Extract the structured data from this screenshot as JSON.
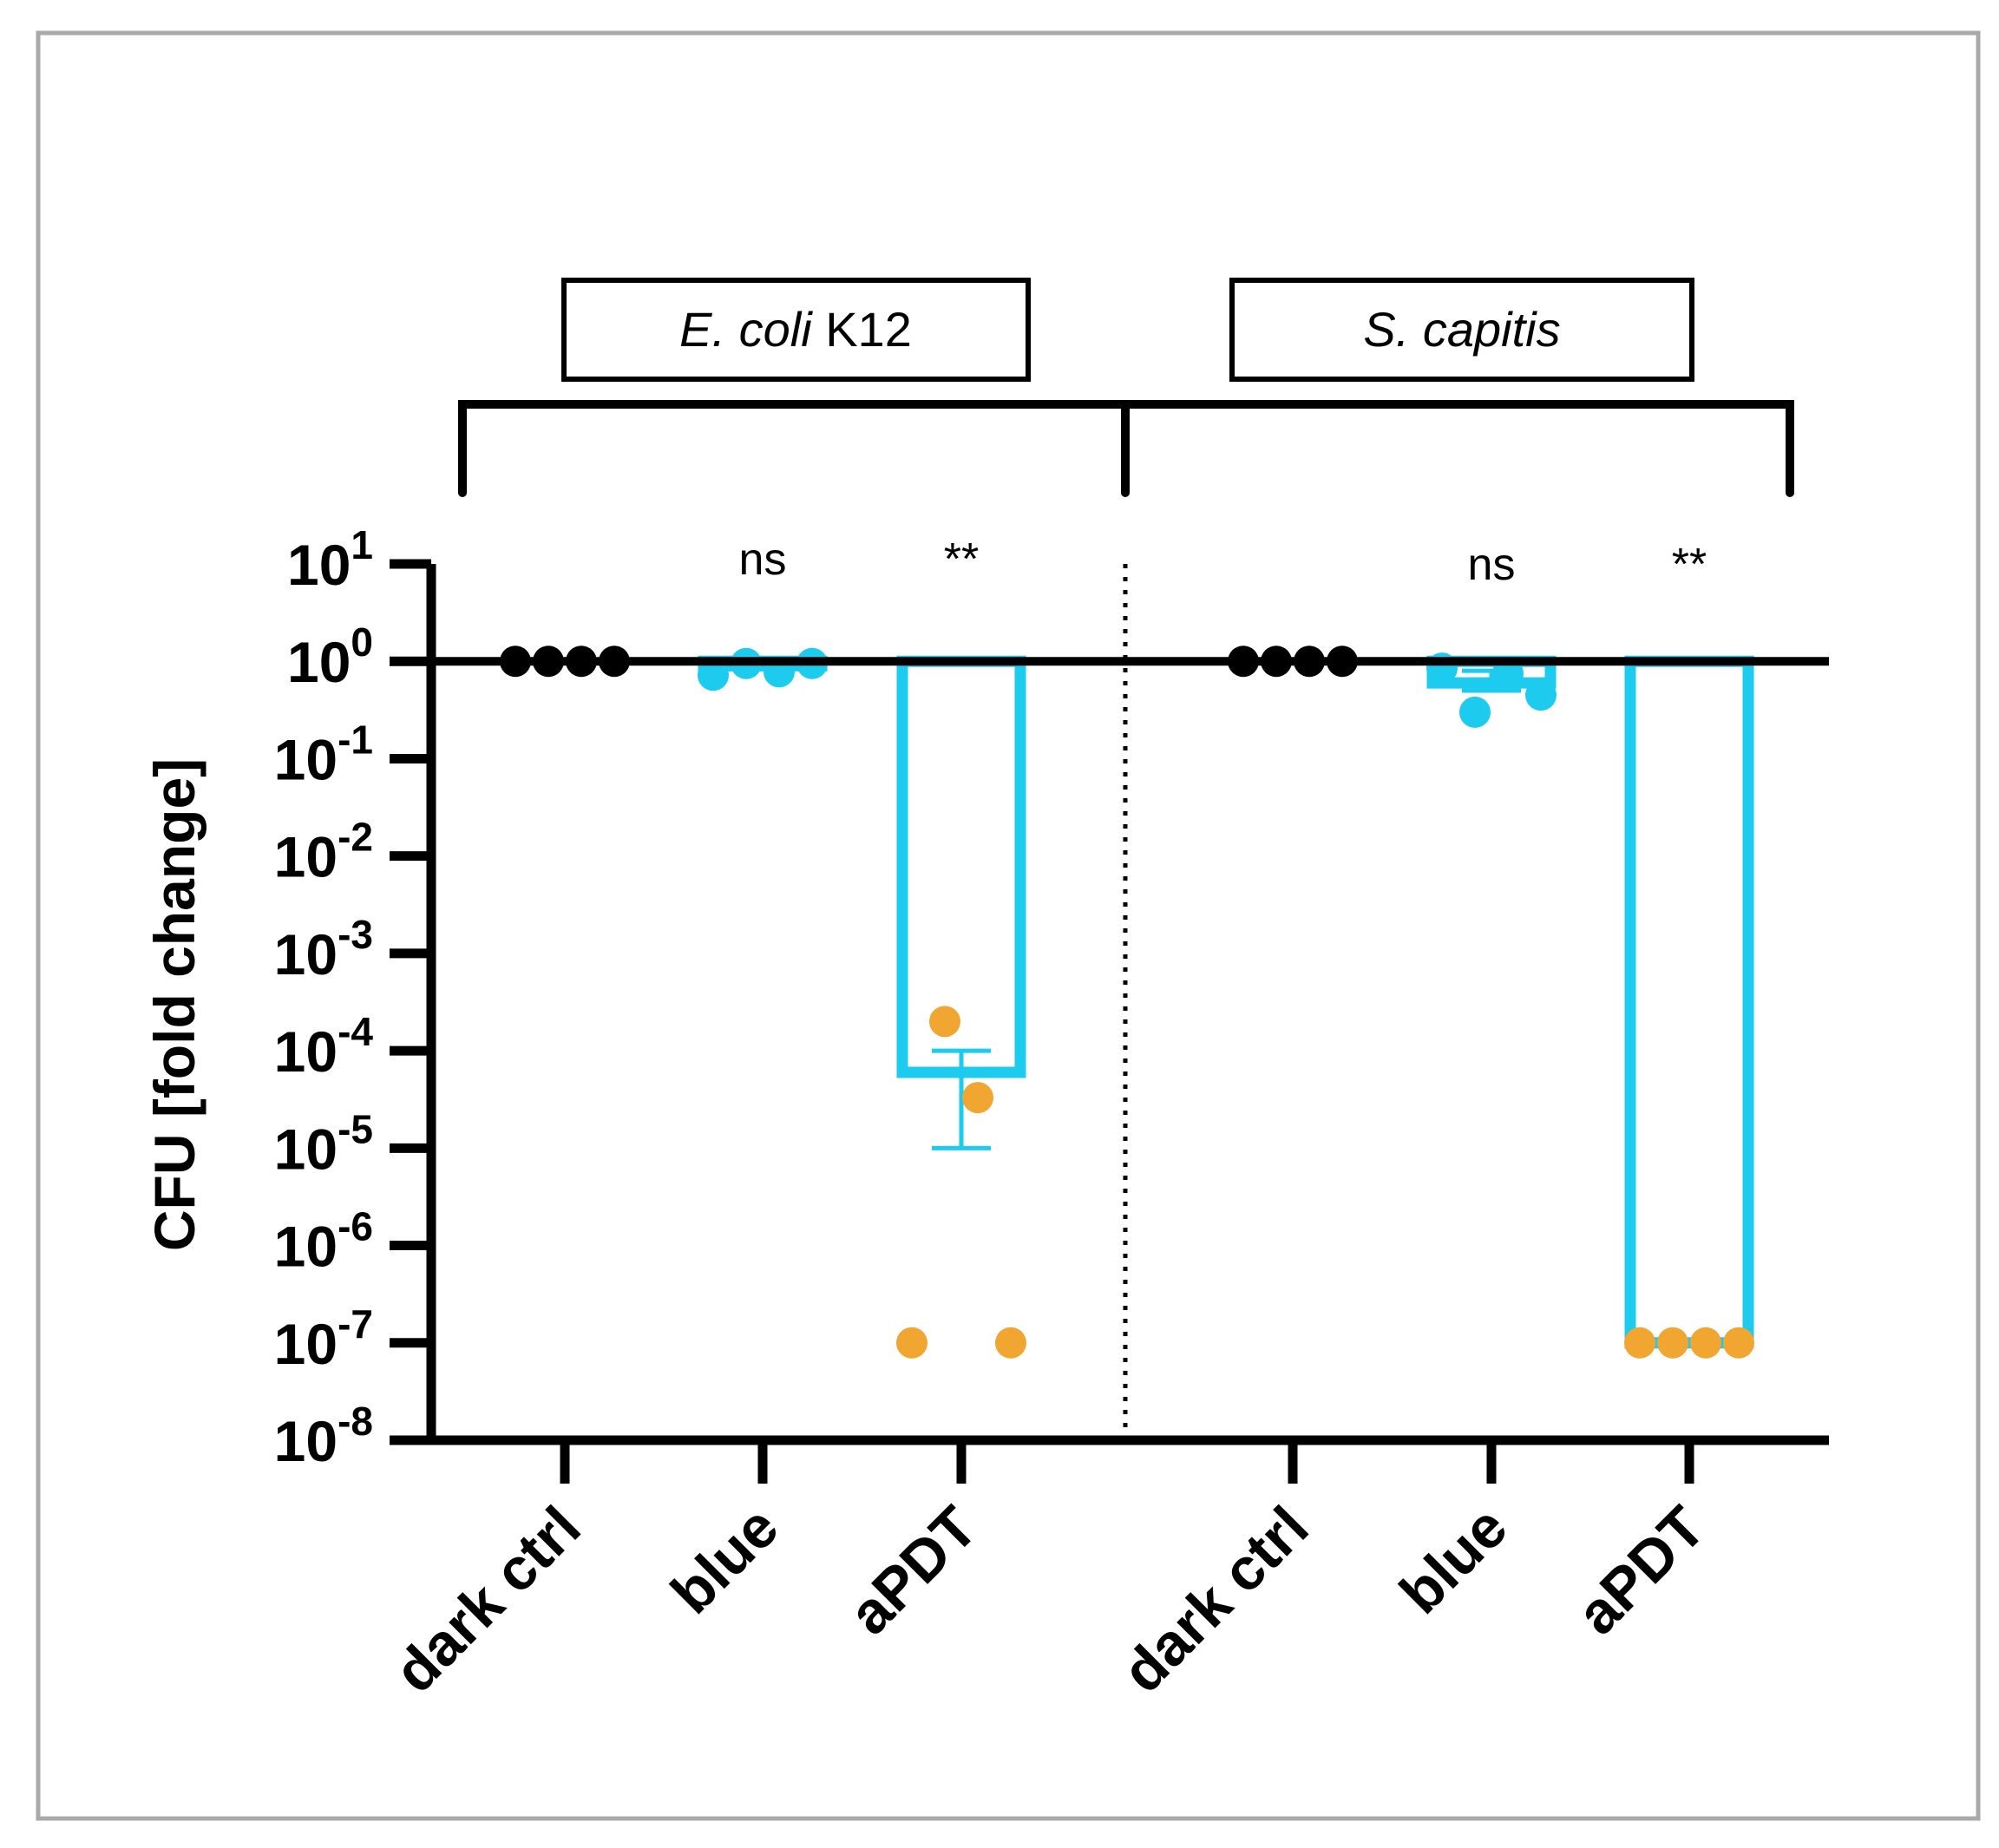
{
  "chart_data": {
    "type": "bar",
    "yscale": "log",
    "ylabel": "CFU [fold change]",
    "ylim": [
      1e-08,
      10
    ],
    "yticks": [
      {
        "base": "10",
        "exp": "1",
        "value": 10
      },
      {
        "base": "10",
        "exp": "0",
        "value": 1
      },
      {
        "base": "10",
        "exp": "-1",
        "value": 0.1
      },
      {
        "base": "10",
        "exp": "-2",
        "value": 0.01
      },
      {
        "base": "10",
        "exp": "-3",
        "value": 0.001
      },
      {
        "base": "10",
        "exp": "-4",
        "value": 0.0001
      },
      {
        "base": "10",
        "exp": "-5",
        "value": 1e-05
      },
      {
        "base": "10",
        "exp": "-6",
        "value": 1e-06
      },
      {
        "base": "10",
        "exp": "-7",
        "value": 1e-07
      },
      {
        "base": "10",
        "exp": "-8",
        "value": 1e-08
      }
    ],
    "reference_line": 1,
    "groups": [
      {
        "name_italic": "E. coli",
        "name_suffix": " K12",
        "categories": [
          {
            "label": "dark ctrl",
            "bar_value": 1,
            "bar_color": "#000000",
            "points": [
              1,
              1,
              1,
              1
            ],
            "point_color": "#000000",
            "error": null,
            "significance": ""
          },
          {
            "label": "blue",
            "bar_value": 0.9,
            "bar_color": "#1ccbee",
            "points": [
              0.72,
              0.95,
              0.78,
              0.95
            ],
            "point_color": "#1ccbee",
            "error": null,
            "significance": "ns"
          },
          {
            "label": "aPDT",
            "bar_value": 6e-05,
            "bar_color": "#1ccbee",
            "points": [
              1e-07,
              0.0002,
              3.3e-05,
              1e-07
            ],
            "point_color": "#f0a630",
            "error": [
              1e-05,
              0.0001
            ],
            "significance": "**"
          }
        ]
      },
      {
        "name_italic": "S. capitis",
        "name_suffix": "",
        "categories": [
          {
            "label": "dark ctrl",
            "bar_value": 1,
            "bar_color": "#000000",
            "points": [
              1,
              1,
              1,
              1
            ],
            "point_color": "#000000",
            "error": null,
            "significance": ""
          },
          {
            "label": "blue",
            "bar_value": 0.6,
            "bar_color": "#1ccbee",
            "points": [
              0.85,
              0.3,
              0.75,
              0.45
            ],
            "point_color": "#1ccbee",
            "error": [
              0.5,
              0.8
            ],
            "significance": "ns"
          },
          {
            "label": "aPDT",
            "bar_value": 1e-07,
            "bar_color": "#1ccbee",
            "points": [
              1e-07,
              1e-07,
              1e-07,
              1e-07
            ],
            "point_color": "#f0a630",
            "error": null,
            "significance": "**"
          }
        ]
      }
    ]
  }
}
